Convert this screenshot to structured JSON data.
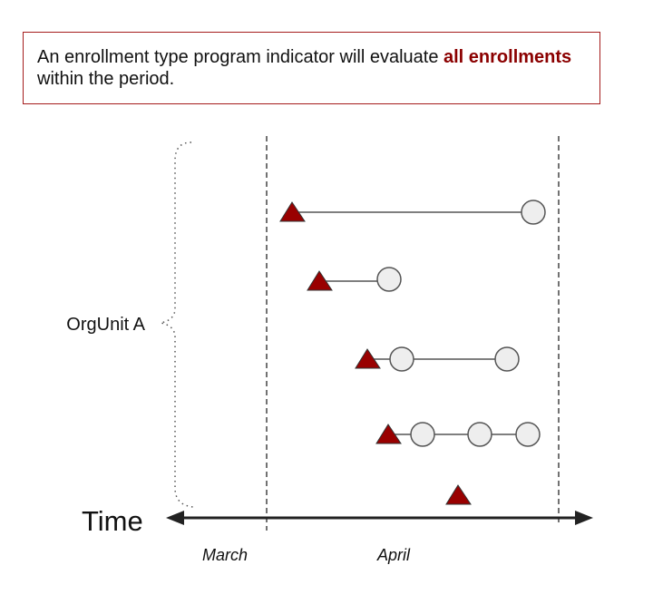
{
  "callout": {
    "text_before": "An enrollment type program indicator will evaluate ",
    "text_highlight": "all enrollments",
    "text_after": " within the period."
  },
  "labels": {
    "group": "OrgUnit A",
    "axis": "Time",
    "period_start": "March",
    "period_end": "April"
  },
  "colors": {
    "highlight": "#8b0000",
    "border": "#a51c1c",
    "enrollment_marker": "#990000",
    "event_marker_fill": "#eeeeee",
    "line": "#555555"
  },
  "icons": {
    "enrollment": "triangle-icon",
    "event": "circle-icon"
  },
  "enrollments": [
    {
      "name": "enrollment-1",
      "event_count": 1
    },
    {
      "name": "enrollment-2",
      "event_count": 1
    },
    {
      "name": "enrollment-3",
      "event_count": 2
    },
    {
      "name": "enrollment-4",
      "event_count": 3
    },
    {
      "name": "enrollment-5",
      "event_count": 0
    }
  ]
}
